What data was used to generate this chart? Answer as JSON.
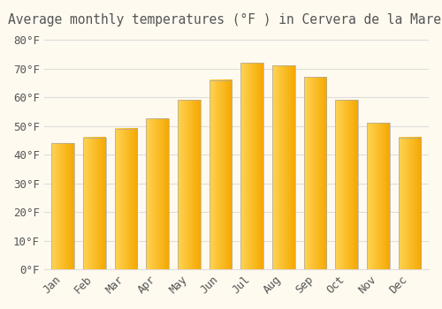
{
  "title": "Average monthly temperatures (°F ) in Cervera de la Marenda",
  "months": [
    "Jan",
    "Feb",
    "Mar",
    "Apr",
    "May",
    "Jun",
    "Jul",
    "Aug",
    "Sep",
    "Oct",
    "Nov",
    "Dec"
  ],
  "values": [
    44.0,
    46.0,
    49.0,
    52.5,
    59.0,
    66.0,
    72.0,
    71.0,
    67.0,
    59.0,
    51.0,
    46.0
  ],
  "bar_color_left": "#FFD455",
  "bar_color_right": "#F5A800",
  "bar_edge_color": "#AAAAAA",
  "background_color": "#FFFAF0",
  "grid_color": "#DDDDDD",
  "ylim": [
    0,
    83
  ],
  "yticks": [
    0,
    10,
    20,
    30,
    40,
    50,
    60,
    70,
    80
  ],
  "ytick_labels": [
    "0°F",
    "10°F",
    "20°F",
    "30°F",
    "40°F",
    "50°F",
    "60°F",
    "70°F",
    "80°F"
  ],
  "title_fontsize": 10.5,
  "tick_fontsize": 9,
  "font_family": "monospace",
  "font_color": "#555555",
  "bar_width": 0.72
}
